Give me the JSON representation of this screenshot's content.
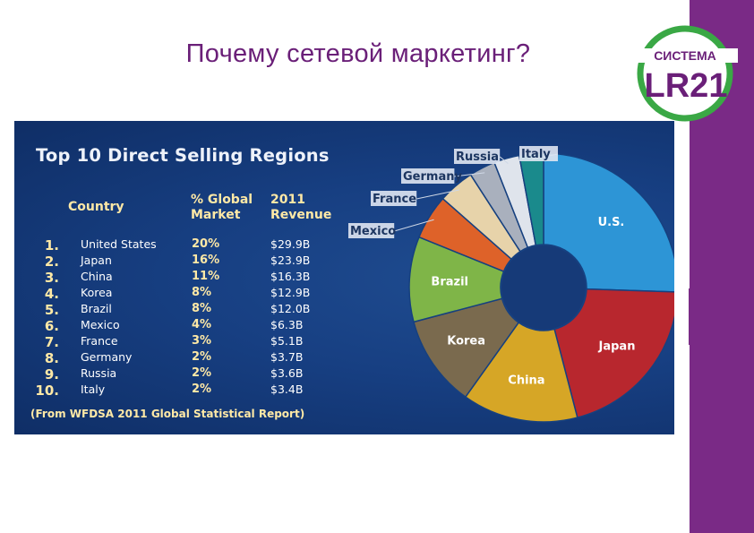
{
  "slide": {
    "title": "Почему сетевой маркетинг?"
  },
  "logo": {
    "top_text": "СИСТЕМА",
    "main_text": "LR21",
    "ring_color": "#3aa845",
    "text_color": "#6a1f78"
  },
  "colors": {
    "accent_purple": "#7a2a86",
    "panel_blue": "#173f82",
    "header_yellow": "#ffe9a6"
  },
  "panel": {
    "title": "Top 10 Direct Selling Regions",
    "headers": {
      "country": "Country",
      "share_line1": "% Global",
      "share_line2": "Market",
      "revenue_line1": "2011",
      "revenue_line2": "Revenue"
    },
    "rows": [
      {
        "rank": "1.",
        "country": "United States",
        "share": "20%",
        "revenue": "$29.9B"
      },
      {
        "rank": "2.",
        "country": "Japan",
        "share": "16%",
        "revenue": "$23.9B"
      },
      {
        "rank": "3.",
        "country": "China",
        "share": "11%",
        "revenue": "$16.3B"
      },
      {
        "rank": "4.",
        "country": "Korea",
        "share": "8%",
        "revenue": "$12.9B"
      },
      {
        "rank": "5.",
        "country": "Brazil",
        "share": "8%",
        "revenue": "$12.0B"
      },
      {
        "rank": "6.",
        "country": "Mexico",
        "share": "4%",
        "revenue": "$6.3B"
      },
      {
        "rank": "7.",
        "country": "France",
        "share": "3%",
        "revenue": "$5.1B"
      },
      {
        "rank": "8.",
        "country": "Germany",
        "share": "2%",
        "revenue": "$3.7B"
      },
      {
        "rank": "9.",
        "country": "Russia",
        "share": "2%",
        "revenue": "$3.6B"
      },
      {
        "rank": "10.",
        "country": "Italy",
        "share": "2%",
        "revenue": "$3.4B"
      }
    ],
    "source": "(From WFDSA 2011 Global Statistical Report)"
  },
  "chart_data": {
    "type": "pie",
    "donut": true,
    "title": "Top 10 Direct Selling Regions",
    "series": [
      {
        "name": "U.S.",
        "value": 29.9,
        "color": "#2d95d6"
      },
      {
        "name": "Japan",
        "value": 23.9,
        "color": "#b8272e"
      },
      {
        "name": "China",
        "value": 16.3,
        "color": "#d6a626"
      },
      {
        "name": "Korea",
        "value": 12.9,
        "color": "#7a6a4e"
      },
      {
        "name": "Brazil",
        "value": 12.0,
        "color": "#7fb548"
      },
      {
        "name": "Mexico",
        "value": 6.3,
        "color": "#de6229"
      },
      {
        "name": "France",
        "value": 5.1,
        "color": "#e7d3aa"
      },
      {
        "name": "Germany",
        "value": 3.7,
        "color": "#a9b0bd"
      },
      {
        "name": "Russia",
        "value": 3.6,
        "color": "#dfe4ec"
      },
      {
        "name": "Italy",
        "value": 3.4,
        "color": "#1a8a8c"
      }
    ],
    "start_at": "top",
    "direction": "clockwise",
    "label_placement": {
      "U.S.": "inside",
      "Japan": "inside",
      "China": "inside",
      "Korea": "inside",
      "Brazil": "inside",
      "Mexico": "outside",
      "France": "outside",
      "Germany": "outside",
      "Russia": "outside",
      "Italy": "outside"
    }
  }
}
